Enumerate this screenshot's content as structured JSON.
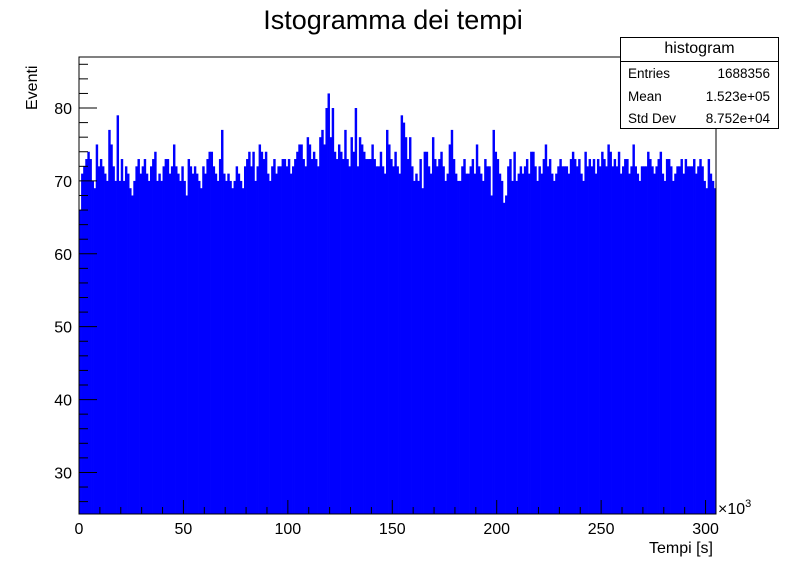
{
  "chart_data": {
    "type": "bar",
    "title": "Istogramma dei tempi",
    "xlabel": "Tempi [s]",
    "ylabel": "Eventi",
    "x_multiplier_label": "×10",
    "x_multiplier_exponent": "3",
    "xlim": [
      0,
      305
    ],
    "ylim": [
      24.3,
      87
    ],
    "x_ticks": [
      "0",
      "50",
      "100",
      "150",
      "200",
      "250",
      "300"
    ],
    "y_ticks": [
      "30",
      "40",
      "50",
      "60",
      "70",
      "80"
    ],
    "bar_color": "#0000ff",
    "bins": 305,
    "bin_width": 1,
    "values": [
      66,
      71,
      72,
      73,
      74,
      73,
      70,
      69,
      75,
      72,
      73,
      72,
      71,
      70,
      77,
      75,
      72,
      70,
      79,
      70,
      73,
      70,
      72,
      71,
      69,
      68,
      70,
      72,
      73,
      71,
      72,
      73,
      71,
      70,
      72,
      73,
      74,
      70,
      71,
      70,
      72,
      73,
      73,
      71,
      72,
      75,
      72,
      71,
      70,
      72,
      70,
      68,
      73,
      72,
      71,
      72,
      71,
      70,
      69,
      72,
      71,
      73,
      74,
      74,
      72,
      71,
      70,
      73,
      77,
      71,
      70,
      71,
      70,
      69,
      70,
      72,
      71,
      70,
      69,
      72,
      73,
      74,
      72,
      74,
      70,
      72,
      75,
      74,
      73,
      74,
      71,
      70,
      72,
      73,
      71,
      72,
      72,
      73,
      73,
      72,
      73,
      71,
      72,
      73,
      74,
      75,
      75,
      73,
      72,
      76,
      75,
      73,
      74,
      73,
      72,
      76,
      77,
      75,
      80,
      82,
      76,
      80,
      74,
      73,
      75,
      74,
      73,
      77,
      73,
      72,
      76,
      74,
      80,
      72,
      76,
      75,
      74,
      73,
      73,
      73,
      75,
      73,
      72,
      72,
      74,
      72,
      71,
      77,
      75,
      73,
      72,
      74,
      72,
      71,
      79,
      78,
      76,
      73,
      76,
      72,
      70,
      71,
      70,
      73,
      69,
      74,
      74,
      72,
      71,
      76,
      73,
      72,
      73,
      74,
      72,
      70,
      71,
      75,
      77,
      73,
      71,
      70,
      70,
      72,
      73,
      71,
      71,
      72,
      73,
      71,
      75,
      72,
      71,
      70,
      73,
      72,
      72,
      68,
      77,
      74,
      73,
      71,
      70,
      67,
      68,
      72,
      73,
      70,
      74,
      70,
      71,
      72,
      71,
      72,
      73,
      71,
      74,
      74,
      72,
      70,
      72,
      71,
      73,
      75,
      72,
      73,
      71,
      70,
      71,
      72,
      73,
      72,
      72,
      72,
      71,
      73,
      74,
      73,
      72,
      73,
      71,
      70,
      74,
      72,
      73,
      72,
      73,
      71,
      73,
      72,
      74,
      73,
      72,
      75,
      74,
      72,
      73,
      72,
      74,
      71,
      72,
      73,
      73,
      71,
      72,
      75,
      72,
      71,
      70,
      72,
      72,
      72,
      74,
      73,
      72,
      71,
      72,
      73,
      74,
      71,
      70,
      73,
      73,
      72,
      70,
      71,
      72,
      72,
      73,
      71,
      73,
      72,
      72,
      72,
      73,
      71,
      72,
      73,
      72,
      70,
      69,
      73,
      71,
      70,
      69
    ],
    "stats": {
      "name": "histogram",
      "rows": [
        {
          "label": "Entries",
          "value": "1688356"
        },
        {
          "label": "Mean",
          "value": "1.523e+05"
        },
        {
          "label": "Std Dev",
          "value": "8.752e+04"
        }
      ]
    }
  }
}
